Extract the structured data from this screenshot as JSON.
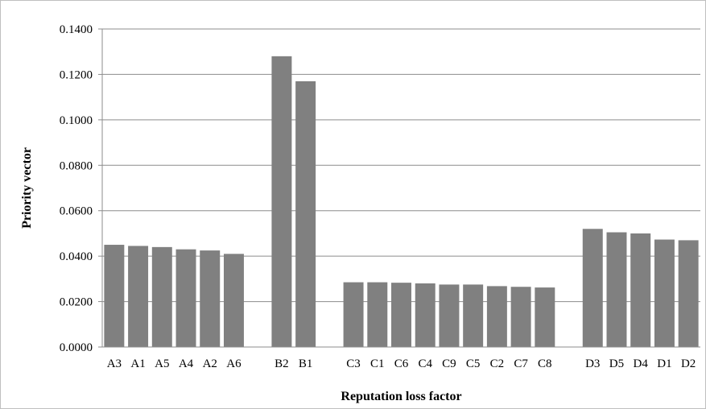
{
  "chart_data": {
    "type": "bar",
    "xlabel": "Reputation loss factor",
    "ylabel": "Priority vector",
    "ylim": [
      0,
      0.14
    ],
    "y_ticks": [
      "0.0000",
      "0.0200",
      "0.0400",
      "0.0600",
      "0.0800",
      "0.1000",
      "0.1200",
      "0.1400"
    ],
    "grid": true,
    "legend": "none",
    "bar_color": "#808080",
    "groups": [
      {
        "categories": [
          "A3",
          "A1",
          "A5",
          "A4",
          "A2",
          "A6"
        ],
        "values": [
          0.045,
          0.0445,
          0.044,
          0.043,
          0.0425,
          0.041
        ]
      },
      {
        "categories": [
          "B2",
          "B1"
        ],
        "values": [
          0.128,
          0.117
        ]
      },
      {
        "categories": [
          "C3",
          "C1",
          "C6",
          "C4",
          "C9",
          "C5",
          "C2",
          "C7",
          "C8"
        ],
        "values": [
          0.0285,
          0.0285,
          0.0283,
          0.028,
          0.0275,
          0.0275,
          0.0268,
          0.0265,
          0.0262
        ]
      },
      {
        "categories": [
          "D3",
          "D5",
          "D4",
          "D1",
          "D2"
        ],
        "values": [
          0.052,
          0.0505,
          0.05,
          0.0473,
          0.047
        ]
      }
    ]
  }
}
